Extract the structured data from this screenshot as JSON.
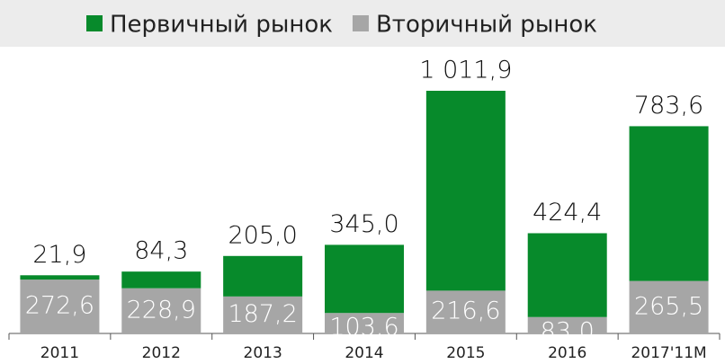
{
  "chart_data": {
    "type": "stacked_bar",
    "categories": [
      "2011",
      "2012",
      "2013",
      "2014",
      "2015",
      "2016",
      "2017'11M"
    ],
    "series": [
      {
        "name": "Вторичный рынок",
        "color": "#a6a6a6",
        "values": [
          272.6,
          228.9,
          187.2,
          103.6,
          216.6,
          83.0,
          265.5
        ],
        "value_labels": [
          "272,6",
          "228,9",
          "187,2",
          "103,6",
          "216,6",
          "83,0",
          "265,5"
        ]
      },
      {
        "name": "Первичный рынок",
        "color": "#078a2b",
        "values": [
          21.9,
          84.3,
          205.0,
          345.0,
          1011.9,
          424.4,
          783.6
        ],
        "value_labels": [
          "21,9",
          "84,3",
          "205,0",
          "345,0",
          "1 011,9",
          "424,4",
          "783,6"
        ]
      }
    ]
  }
}
